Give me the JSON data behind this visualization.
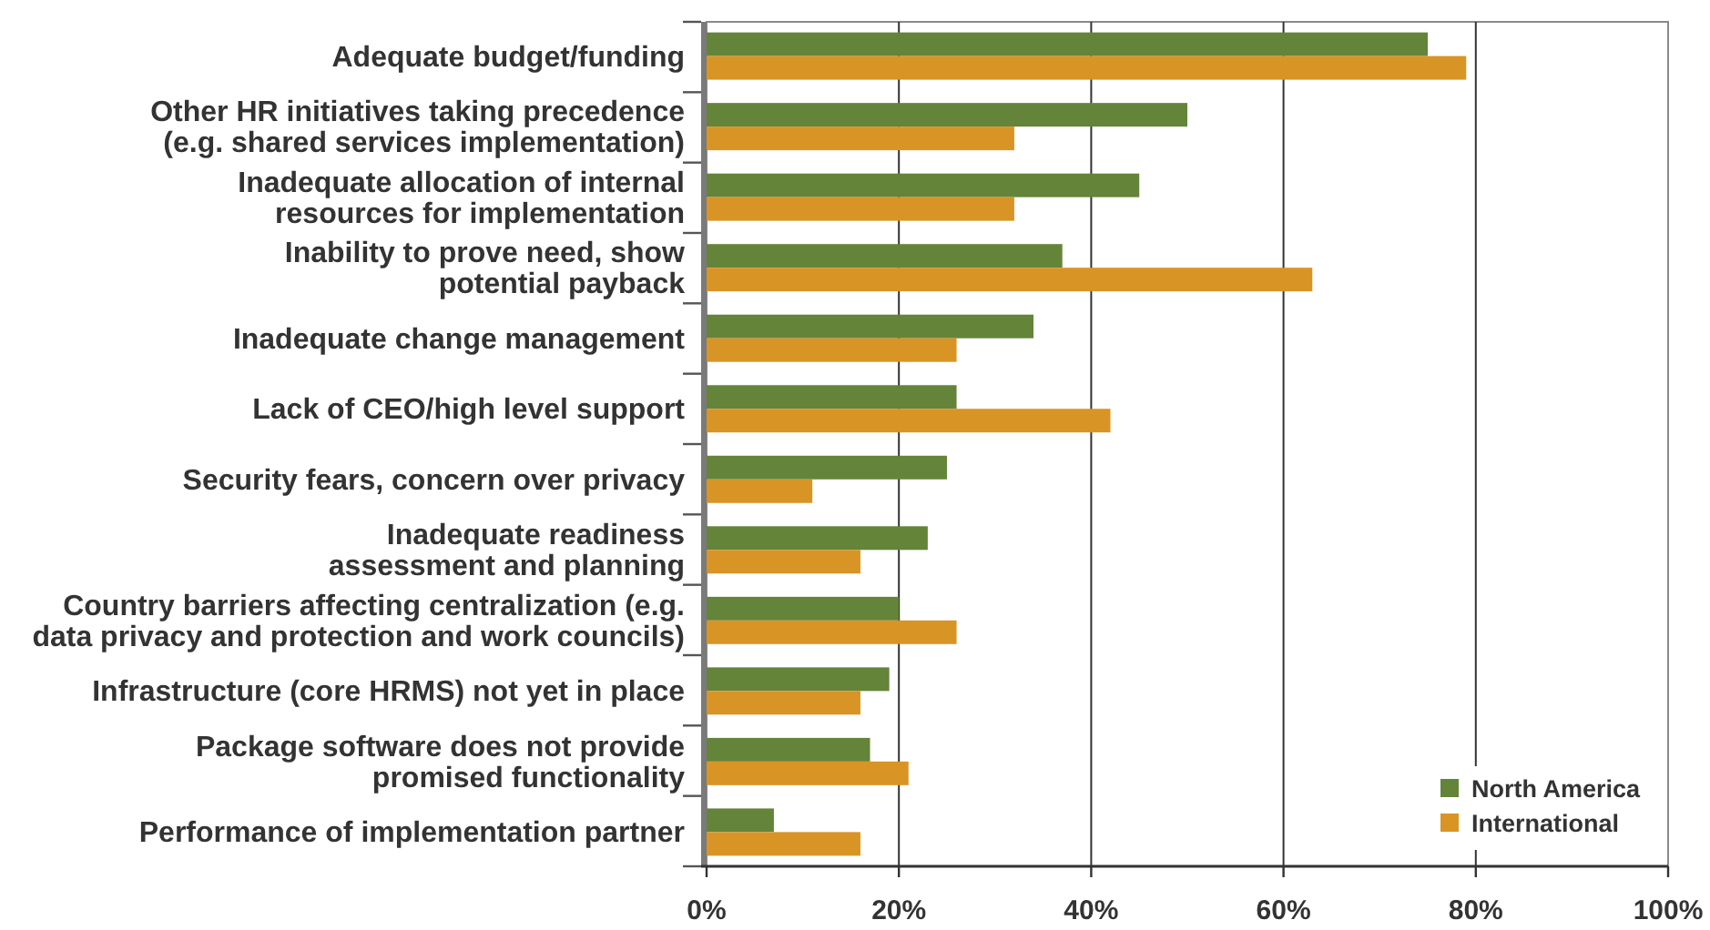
{
  "chart_data": {
    "type": "bar",
    "orientation": "horizontal",
    "categories": [
      "Adequate budget/funding",
      "Other HR initiatives taking precedence\n(e.g. shared services implementation)",
      "Inadequate allocation of internal\nresources for implementation",
      "Inability to prove need, show\npotential payback",
      "Inadequate change management",
      "Lack of CEO/high level support",
      "Security fears, concern over privacy",
      "Inadequate readiness\nassessment and planning",
      "Country barriers affecting centralization (e.g.\ndata privacy and protection and work councils)",
      "Infrastructure (core HRMS) not yet in place",
      "Package software does not provide\npromised functionality",
      "Performance of implementation partner"
    ],
    "series": [
      {
        "name": "North America",
        "color": "#64843a",
        "values": [
          75,
          50,
          45,
          37,
          34,
          26,
          25,
          23,
          20,
          19,
          17,
          7
        ]
      },
      {
        "name": "International",
        "color": "#d99426",
        "values": [
          79,
          32,
          32,
          63,
          26,
          42,
          11,
          16,
          26,
          16,
          21,
          16
        ]
      }
    ],
    "xlim": [
      0,
      100
    ],
    "xticks": [
      {
        "value": 0,
        "label": "0%"
      },
      {
        "value": 20,
        "label": "20%"
      },
      {
        "value": 40,
        "label": "40%"
      },
      {
        "value": 60,
        "label": "60%"
      },
      {
        "value": 80,
        "label": "80%"
      },
      {
        "value": 100,
        "label": "100%"
      }
    ],
    "grid": "x",
    "legend": "bottom right"
  }
}
